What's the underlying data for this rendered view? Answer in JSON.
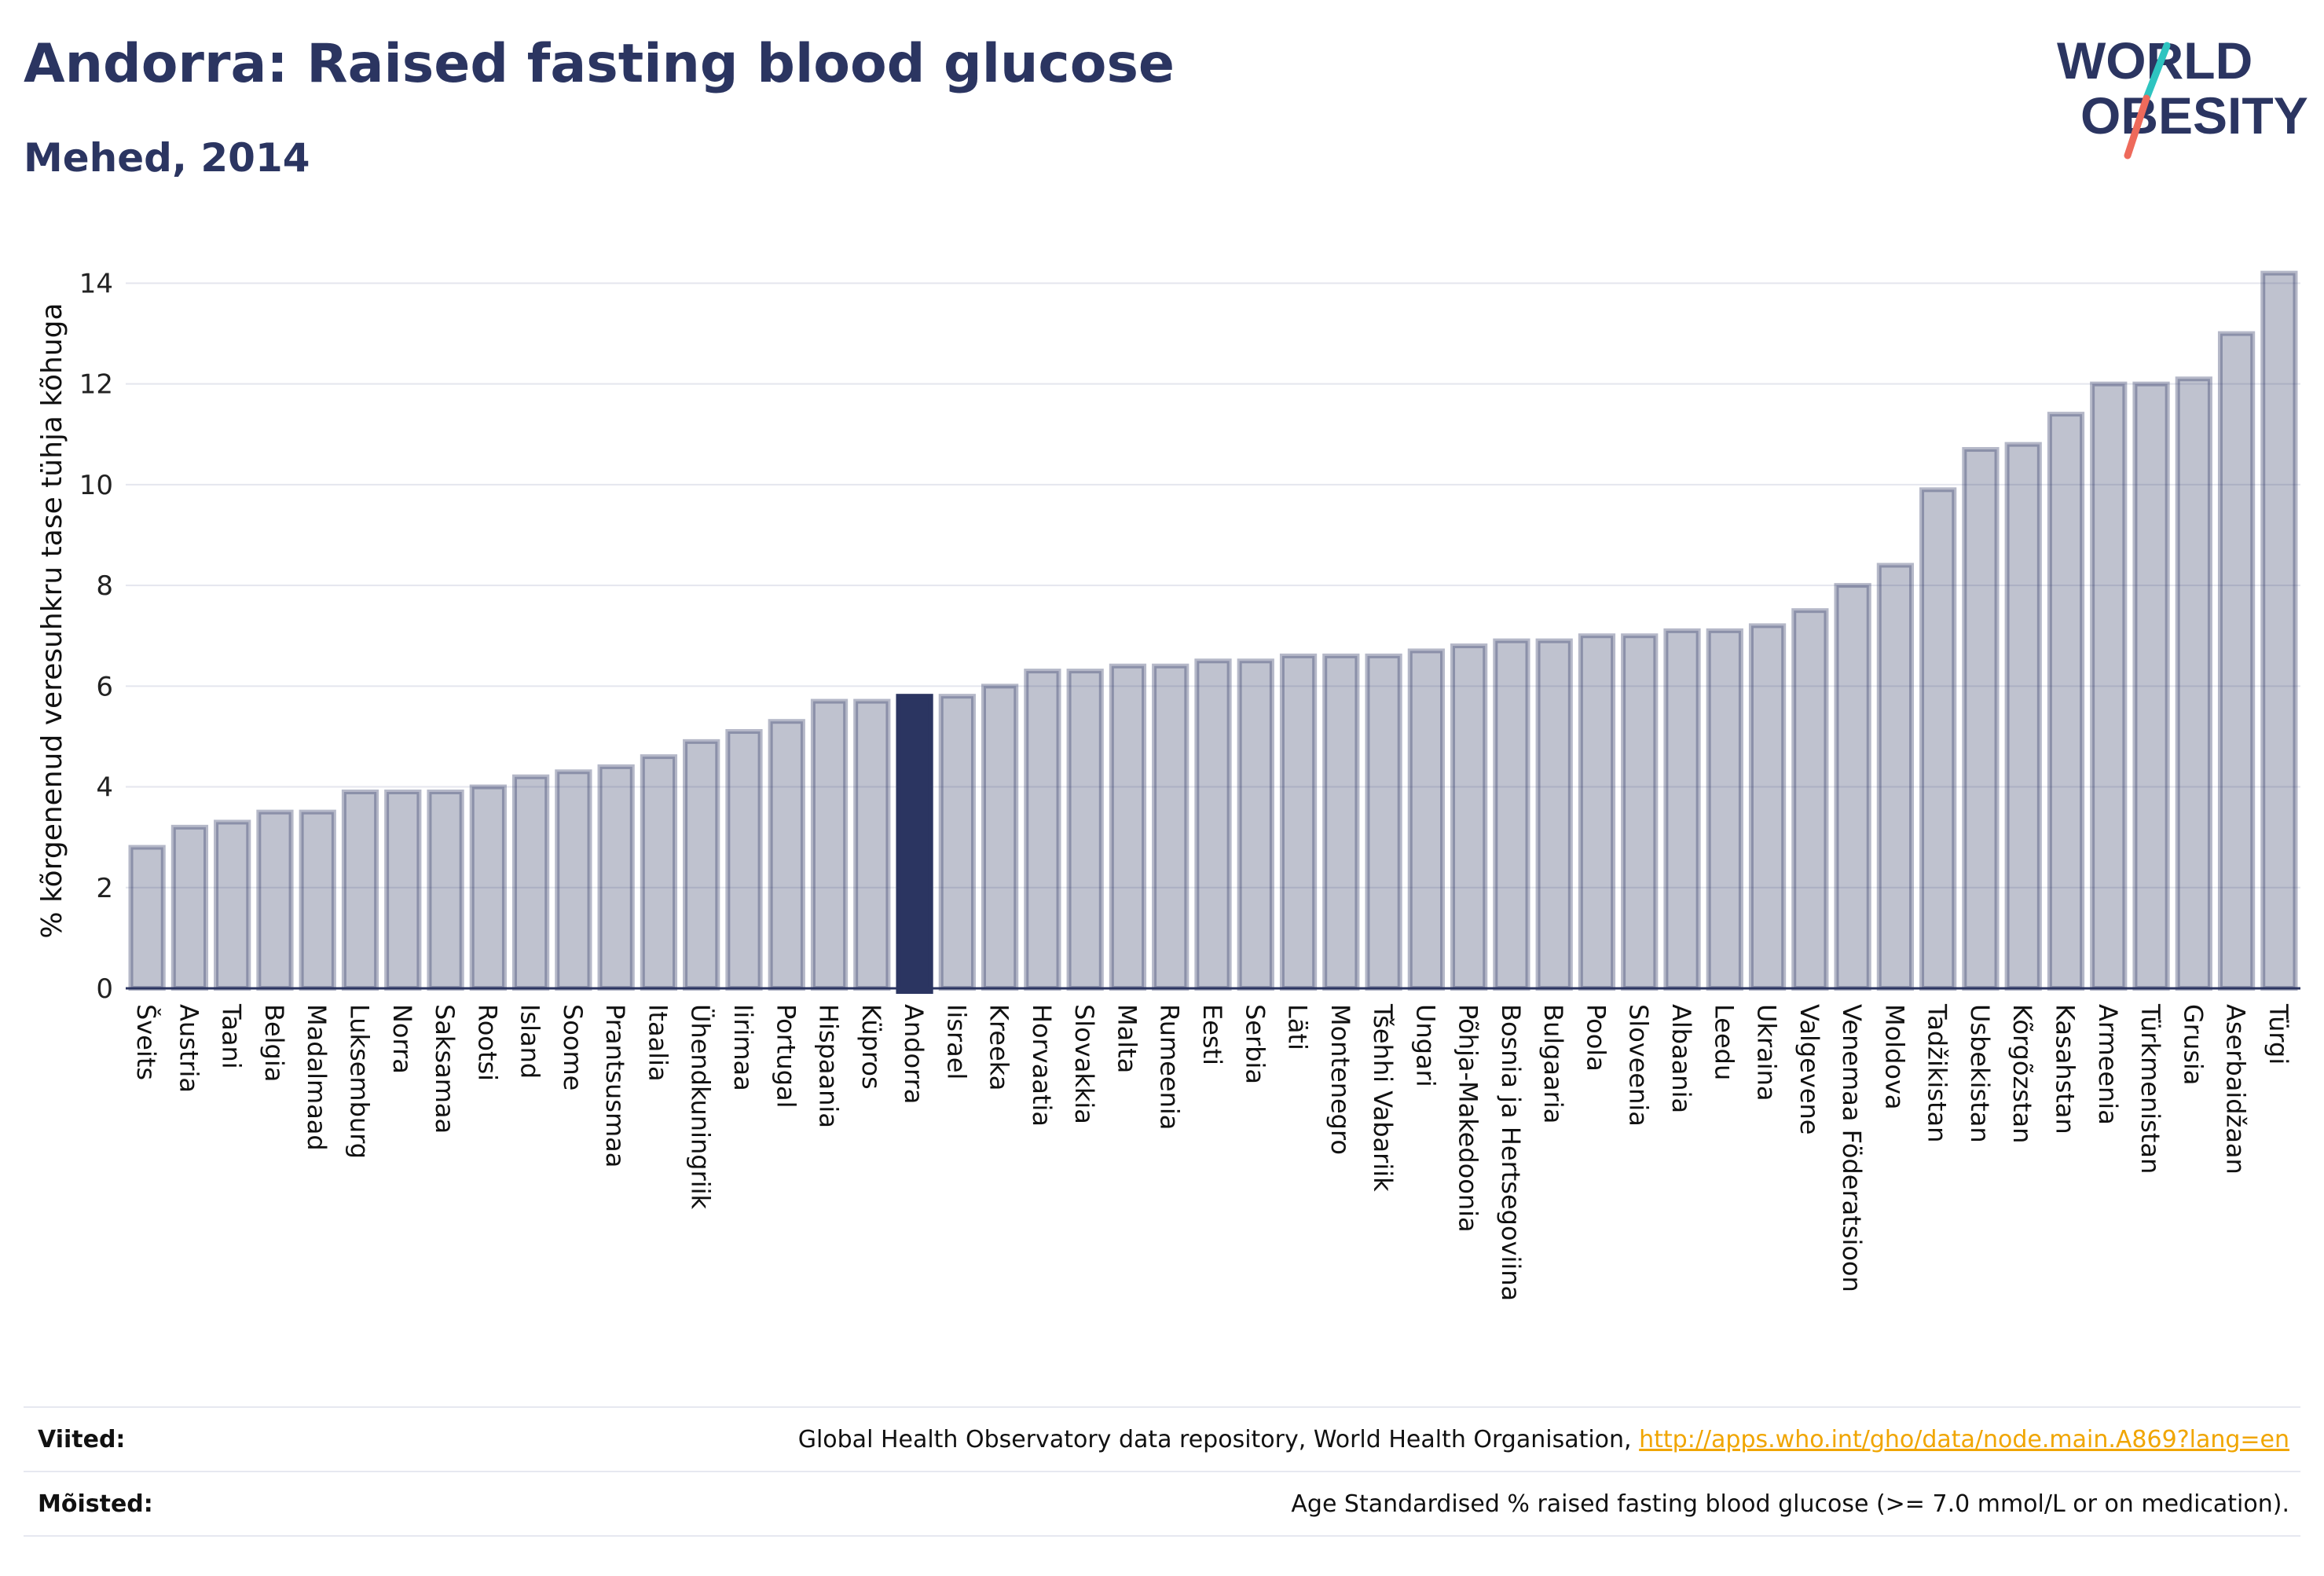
{
  "header": {
    "title": "Andorra: Raised fasting blood glucose",
    "subtitle": "Mehed, 2014"
  },
  "logo": {
    "line1": "WORLD",
    "line2": "OBESITY"
  },
  "colors": {
    "bar": "#2b3561",
    "highlight": "#2b3561",
    "text": "#2b3561",
    "link": "#f0a500"
  },
  "chart_data": {
    "type": "bar",
    "title": "Andorra: Raised fasting blood glucose",
    "subtitle": "Mehed, 2014",
    "xlabel": "",
    "ylabel": "% kõrgenenud veresuhkru tase tühja kõhuga",
    "ylim": [
      0,
      14.6
    ],
    "yticks": [
      0,
      2,
      4,
      6,
      8,
      10,
      12,
      14
    ],
    "grid": true,
    "highlight": "Andorra",
    "categories": [
      "Šveits",
      "Austria",
      "Taani",
      "Belgia",
      "Madalmaad",
      "Luksemburg",
      "Norra",
      "Saksamaa",
      "Rootsi",
      "Island",
      "Soome",
      "Prantsusmaa",
      "Itaalia",
      "Ühendkuningriik",
      "Iirimaa",
      "Portugal",
      "Hispaania",
      "Küpros",
      "Andorra",
      "Iisrael",
      "Kreeka",
      "Horvaatia",
      "Slovakkia",
      "Malta",
      "Rumeenia",
      "Eesti",
      "Serbia",
      "Läti",
      "Montenegro",
      "Tšehhi Vabariik",
      "Ungari",
      "Põhja-Makedoonia",
      "Bosnia ja Hertsegoviina",
      "Bulgaaria",
      "Poola",
      "Sloveenia",
      "Albaania",
      "Leedu",
      "Ukraina",
      "Valgevene",
      "Venemaa Föderatsioon",
      "Moldova",
      "Tadžikistan",
      "Usbekistan",
      "Kõrgõzstan",
      "Kasahstan",
      "Armeenia",
      "Türkmenistan",
      "Grusia",
      "Aserbaidžaan",
      "Türgi"
    ],
    "values": [
      2.8,
      3.2,
      3.3,
      3.5,
      3.5,
      3.9,
      3.9,
      3.9,
      4.0,
      4.2,
      4.3,
      4.4,
      4.6,
      4.9,
      5.1,
      5.3,
      5.7,
      5.7,
      5.8,
      5.8,
      6.0,
      6.3,
      6.3,
      6.4,
      6.4,
      6.5,
      6.5,
      6.6,
      6.6,
      6.6,
      6.7,
      6.8,
      6.9,
      6.9,
      7.0,
      7.0,
      7.1,
      7.1,
      7.2,
      7.5,
      8.0,
      8.4,
      9.9,
      10.7,
      10.8,
      11.4,
      12.0,
      12.0,
      12.1,
      13.0,
      14.2
    ]
  },
  "footer": {
    "sources_label": "Viited:",
    "sources_text": "Global Health Observatory data repository, World Health Organisation,",
    "sources_link": "http://apps.who.int/gho/data/node.main.A869?lang=en",
    "definitions_label": "Mõisted:",
    "definitions_text": "Age Standardised % raised fasting blood glucose (>= 7.0 mmol/L or on medication)."
  }
}
